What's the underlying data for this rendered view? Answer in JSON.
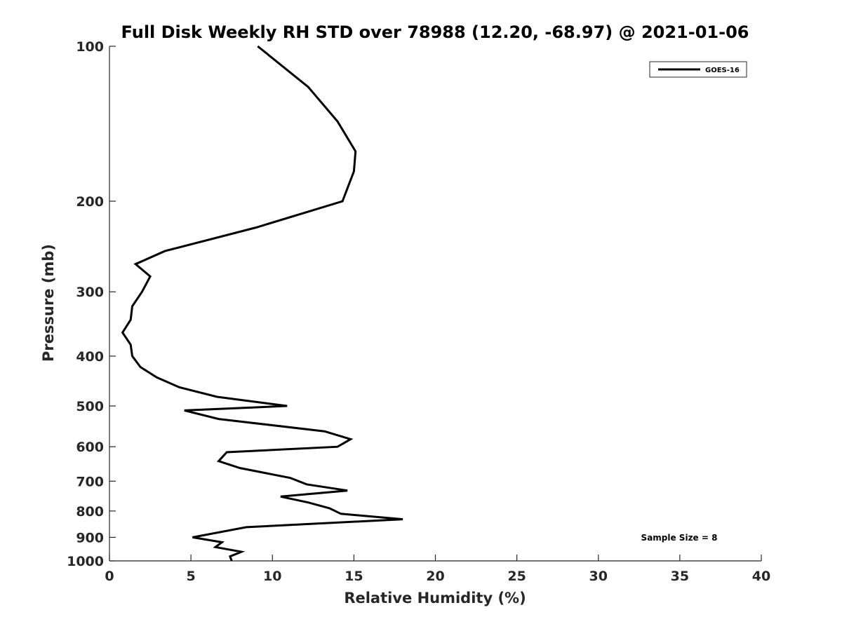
{
  "chart_data": {
    "type": "line",
    "title": "Full Disk Weekly RH STD over 78988 (12.20, -68.97) @ 2021-01-06",
    "xlabel": "Relative Humidity (%)",
    "ylabel": "Pressure (mb)",
    "xlim": [
      0,
      40
    ],
    "ylim": [
      100,
      1000
    ],
    "yscale": "log",
    "y_reversed": true,
    "grid": false,
    "legend_position": "top-right",
    "x_ticks": [
      0,
      5,
      10,
      15,
      20,
      25,
      30,
      35,
      40
    ],
    "y_ticks": [
      100,
      200,
      300,
      400,
      500,
      600,
      700,
      800,
      900,
      1000
    ],
    "series": [
      {
        "name": "GOES-16",
        "color": "#000000",
        "x": [
          9.1,
          12.2,
          14.0,
          15.1,
          15.0,
          14.3,
          9.0,
          3.4,
          1.6,
          2.5,
          2.0,
          1.4,
          1.3,
          0.8,
          1.3,
          1.4,
          1.9,
          2.9,
          4.3,
          6.6,
          10.9,
          4.6,
          6.7,
          13.2,
          14.8,
          14.0,
          7.2,
          6.7,
          8.0,
          11.1,
          12.1,
          14.6,
          10.5,
          12.2,
          13.5,
          14.2,
          18.0,
          8.4,
          5.1,
          6.9,
          6.5,
          8.1,
          7.4,
          7.5
        ],
        "y": [
          100,
          120,
          140,
          160,
          175,
          200,
          225,
          250,
          265,
          280,
          300,
          320,
          340,
          360,
          380,
          400,
          420,
          440,
          460,
          480,
          500,
          510,
          530,
          560,
          580,
          600,
          615,
          640,
          660,
          690,
          710,
          730,
          750,
          770,
          790,
          810,
          830,
          860,
          900,
          920,
          940,
          960,
          980,
          1000
        ]
      }
    ],
    "annotations": [
      "Sample Size = 8"
    ]
  }
}
